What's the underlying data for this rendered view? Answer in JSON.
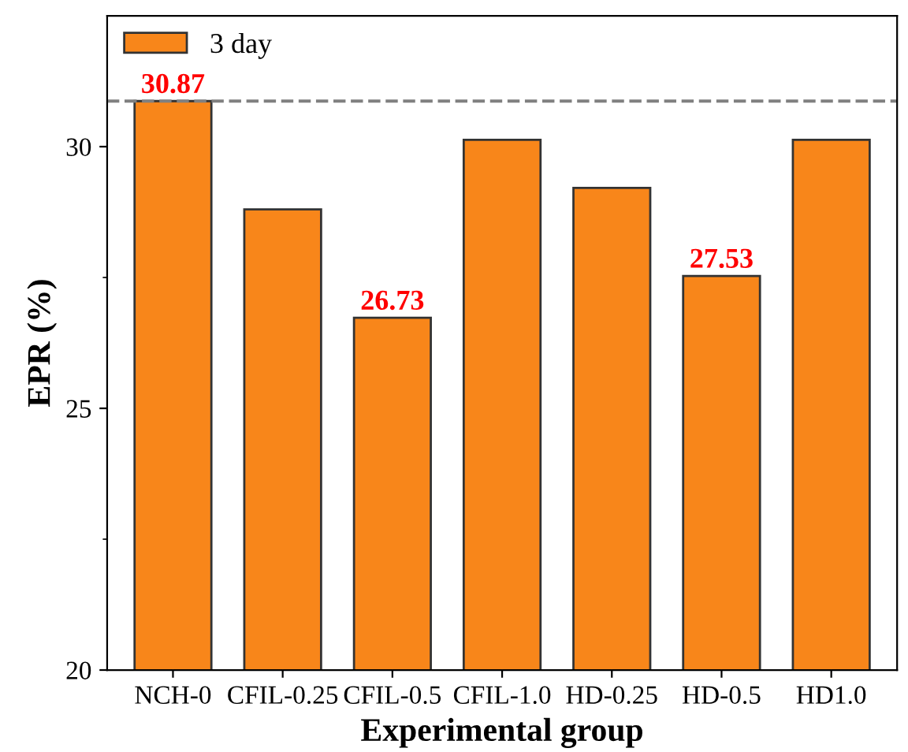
{
  "chart_data": {
    "type": "bar",
    "xlabel": "Experimental group",
    "ylabel": "EPR (%)",
    "categories": [
      "NCH-0",
      "CFIL-0.25",
      "CFIL-0.5",
      "CFIL-1.0",
      "HD-0.25",
      "HD-0.5",
      "HD1.0"
    ],
    "series": [
      {
        "name": "3 day",
        "color": "#f8861a",
        "values": [
          30.87,
          28.8,
          26.73,
          30.13,
          29.21,
          27.53,
          30.13
        ],
        "value_labels": [
          "30.87",
          null,
          "26.73",
          null,
          null,
          "27.53",
          null
        ]
      }
    ],
    "ylim": [
      20,
      32.5
    ],
    "yticks": [
      20,
      25,
      30
    ],
    "ref_lines": [
      {
        "axis": "y",
        "value": 30.87,
        "color": "#808080",
        "line_style": "dashed"
      }
    ],
    "legend": "top left",
    "grid": false
  }
}
